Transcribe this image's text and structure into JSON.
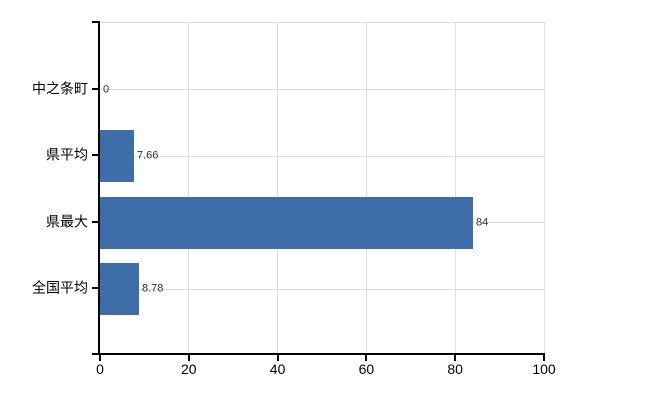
{
  "chart": {
    "background_color": "#ffffff",
    "bar_color": "#3d6eaa",
    "grid_color": "#dedede",
    "axis_color": "#000000",
    "label_color": "#000000",
    "value_label_color": "#303030"
  },
  "chart_data": {
    "type": "bar",
    "orientation": "horizontal",
    "title": "",
    "categories": [
      "中之条町",
      "県平均",
      "県最大",
      "全国平均"
    ],
    "values": [
      0,
      7.66,
      84,
      8.78
    ],
    "value_labels": [
      "0",
      "7.66",
      "84",
      "8.78"
    ],
    "xlabel": "",
    "ylabel": "",
    "xlim": [
      0,
      100
    ],
    "x_ticks": [
      0,
      20,
      40,
      60,
      80,
      100
    ],
    "x_tick_labels": [
      "0",
      "20",
      "40",
      "60",
      "80",
      "100"
    ],
    "grid": "on",
    "legend": "none"
  }
}
